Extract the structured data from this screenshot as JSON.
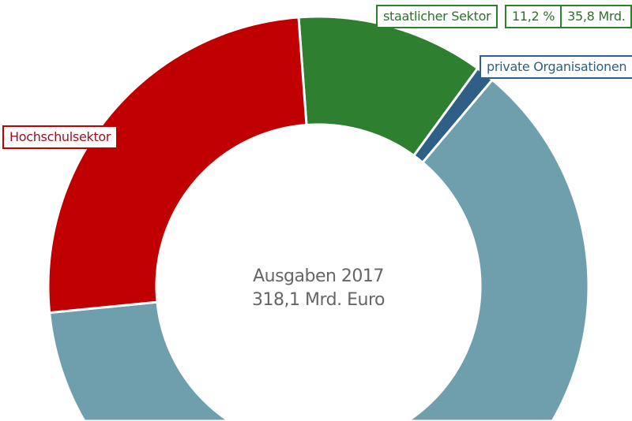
{
  "chart_data": {
    "type": "pie",
    "donut": true,
    "center_title": "Ausgaben 2017",
    "center_value": "318,1 Mrd. Euro",
    "start_angle_deg": -4.2,
    "slices": [
      {
        "name": "staatlicher Sektor",
        "value": 11.2,
        "color": "#2e8030",
        "percent_label": "11,2 %",
        "amount_label": "35,8 Mrd."
      },
      {
        "name": "private Organisationen",
        "value": 1.1,
        "color": "#2f5f86"
      },
      {
        "name": "",
        "value": 62.3,
        "color": "#6f9fad"
      },
      {
        "name": "Hochschulsektor",
        "value": 25.4,
        "color": "#c00000"
      }
    ]
  }
}
